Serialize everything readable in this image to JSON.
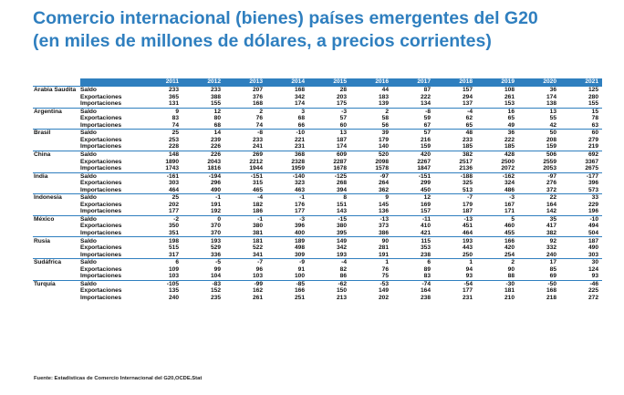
{
  "title": {
    "line1": "Comercio internacional (bienes) países emergentes del G20",
    "line2": "(en miles de millones de dólares, a precios corrientes)"
  },
  "colors": {
    "accent": "#2f7fbf"
  },
  "years": [
    "2011",
    "2012",
    "2013",
    "2014",
    "2015",
    "2016",
    "2017",
    "2018",
    "2019",
    "2020",
    "2021"
  ],
  "rows_per_country": [
    "Saldo",
    "Exportaciones",
    "Importaciones"
  ],
  "countries": [
    {
      "name": "Arabia Saudita",
      "rows": [
        [
          "233",
          "233",
          "207",
          "168",
          "28",
          "44",
          "87",
          "157",
          "108",
          "36",
          "125"
        ],
        [
          "365",
          "388",
          "376",
          "342",
          "203",
          "183",
          "222",
          "294",
          "261",
          "174",
          "280"
        ],
        [
          "131",
          "155",
          "168",
          "174",
          "175",
          "139",
          "134",
          "137",
          "153",
          "138",
          "155"
        ]
      ]
    },
    {
      "name": "Argentina",
      "rows": [
        [
          "9",
          "12",
          "2",
          "3",
          "-3",
          "2",
          "-8",
          "-4",
          "16",
          "13",
          "15"
        ],
        [
          "83",
          "80",
          "76",
          "68",
          "57",
          "58",
          "59",
          "62",
          "65",
          "55",
          "78"
        ],
        [
          "74",
          "68",
          "74",
          "66",
          "60",
          "56",
          "67",
          "65",
          "49",
          "42",
          "63"
        ]
      ]
    },
    {
      "name": "Brasil",
      "rows": [
        [
          "25",
          "14",
          "-8",
          "-10",
          "13",
          "39",
          "57",
          "48",
          "36",
          "50",
          "60"
        ],
        [
          "253",
          "239",
          "233",
          "221",
          "187",
          "179",
          "216",
          "233",
          "222",
          "208",
          "279"
        ],
        [
          "228",
          "226",
          "241",
          "231",
          "174",
          "140",
          "159",
          "185",
          "185",
          "159",
          "219"
        ]
      ]
    },
    {
      "name": "China",
      "rows": [
        [
          "148",
          "226",
          "269",
          "368",
          "609",
          "520",
          "420",
          "382",
          "428",
          "506",
          "692"
        ],
        [
          "1890",
          "2043",
          "2212",
          "2328",
          "2287",
          "2098",
          "2267",
          "2517",
          "2500",
          "2559",
          "3367"
        ],
        [
          "1743",
          "1816",
          "1944",
          "1959",
          "1678",
          "1578",
          "1847",
          "2136",
          "2072",
          "2053",
          "2675"
        ]
      ]
    },
    {
      "name": "India",
      "rows": [
        [
          "-161",
          "-194",
          "-151",
          "-140",
          "-125",
          "-97",
          "-151",
          "-188",
          "-162",
          "-97",
          "-177"
        ],
        [
          "303",
          "296",
          "315",
          "323",
          "268",
          "264",
          "299",
          "325",
          "324",
          "276",
          "396"
        ],
        [
          "464",
          "490",
          "465",
          "463",
          "394",
          "362",
          "450",
          "513",
          "486",
          "372",
          "573"
        ]
      ]
    },
    {
      "name": "Indonesia",
      "rows": [
        [
          "25",
          "-1",
          "-4",
          "-1",
          "8",
          "9",
          "12",
          "-7",
          "-3",
          "22",
          "33"
        ],
        [
          "202",
          "191",
          "182",
          "176",
          "151",
          "145",
          "169",
          "179",
          "167",
          "164",
          "229"
        ],
        [
          "177",
          "192",
          "186",
          "177",
          "143",
          "136",
          "157",
          "187",
          "171",
          "142",
          "196"
        ]
      ]
    },
    {
      "name": "México",
      "rows": [
        [
          "-2",
          "0",
          "-1",
          "-3",
          "-15",
          "-13",
          "-11",
          "-13",
          "5",
          "35",
          "-10"
        ],
        [
          "350",
          "370",
          "380",
          "396",
          "380",
          "373",
          "410",
          "451",
          "460",
          "417",
          "494"
        ],
        [
          "351",
          "370",
          "381",
          "400",
          "395",
          "386",
          "421",
          "464",
          "455",
          "382",
          "504"
        ]
      ]
    },
    {
      "name": "Rusia",
      "rows": [
        [
          "198",
          "193",
          "181",
          "189",
          "149",
          "90",
          "115",
          "193",
          "166",
          "92",
          "187"
        ],
        [
          "515",
          "529",
          "522",
          "498",
          "342",
          "281",
          "353",
          "443",
          "420",
          "332",
          "490"
        ],
        [
          "317",
          "336",
          "341",
          "309",
          "193",
          "191",
          "238",
          "250",
          "254",
          "240",
          "303"
        ]
      ]
    },
    {
      "name": "Sudáfrica",
      "rows": [
        [
          "6",
          "-5",
          "-7",
          "-9",
          "-4",
          "1",
          "6",
          "1",
          "2",
          "17",
          "30"
        ],
        [
          "109",
          "99",
          "96",
          "91",
          "82",
          "76",
          "89",
          "94",
          "90",
          "85",
          "124"
        ],
        [
          "103",
          "104",
          "103",
          "100",
          "86",
          "75",
          "83",
          "93",
          "88",
          "69",
          "93"
        ]
      ]
    },
    {
      "name": "Turquía",
      "rows": [
        [
          "-105",
          "-83",
          "-99",
          "-85",
          "-62",
          "-53",
          "-74",
          "-54",
          "-30",
          "-50",
          "-46"
        ],
        [
          "135",
          "152",
          "162",
          "166",
          "150",
          "149",
          "164",
          "177",
          "181",
          "168",
          "225"
        ],
        [
          "240",
          "235",
          "261",
          "251",
          "213",
          "202",
          "238",
          "231",
          "210",
          "218",
          "272"
        ]
      ]
    }
  ],
  "source": "Fuente: Estadísticas de Comercio Internacional del G20,OCDE.Stat"
}
